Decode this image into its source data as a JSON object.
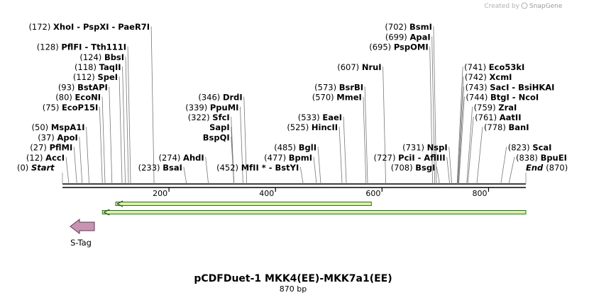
{
  "branding": {
    "created_by": "Created by",
    "app": "SnapGene"
  },
  "map": {
    "title": "pCDFDuet-1 MKK4(EE)-MKK7a1(EE)",
    "length_label": "870 bp",
    "length": 870,
    "start_label": "Start",
    "start_pos": "(0)",
    "end_label": "End",
    "end_pos": "(870)",
    "ticks": [
      200,
      400,
      600,
      800
    ],
    "sites": [
      {
        "pos": "(12)",
        "name": "AccI",
        "bp": 12,
        "side": "L",
        "row": 1
      },
      {
        "pos": "(27)",
        "name": "PflMI",
        "bp": 27,
        "side": "L",
        "row": 2
      },
      {
        "pos": "(37)",
        "name": "ApoI",
        "bp": 37,
        "side": "L",
        "row": 3
      },
      {
        "pos": "(50)",
        "name": "MspA1I",
        "bp": 50,
        "side": "L",
        "row": 4
      },
      {
        "pos": "(75)",
        "name": "EcoP15I",
        "bp": 75,
        "side": "L",
        "row": 6
      },
      {
        "pos": "(80)",
        "name": "EcoNI",
        "bp": 80,
        "side": "L",
        "row": 7
      },
      {
        "pos": "(93)",
        "name": "BstAPI",
        "bp": 93,
        "side": "L",
        "row": 8
      },
      {
        "pos": "(112)",
        "name": "SpeI",
        "bp": 112,
        "side": "L",
        "row": 9
      },
      {
        "pos": "(118)",
        "name": "TaqII",
        "bp": 118,
        "side": "L",
        "row": 10
      },
      {
        "pos": "(124)",
        "name": "BbsI",
        "bp": 124,
        "side": "L",
        "row": 11
      },
      {
        "pos": "(128)",
        "name": "PflFI - Tth111I",
        "bp": 128,
        "side": "L",
        "row": 12
      },
      {
        "pos": "(172)",
        "name": "XhoI - PspXI - PaeR7I",
        "bp": 172,
        "side": "L",
        "row": 14
      },
      {
        "pos": "(233)",
        "name": "BsaI",
        "bp": 233,
        "side": "L",
        "row": 0
      },
      {
        "pos": "(274)",
        "name": "AhdI",
        "bp": 274,
        "side": "L",
        "row": 1
      },
      {
        "pos": "(322)",
        "name": "SfcI",
        "bp": 322,
        "side": "L",
        "row": 5
      },
      {
        "pos": "",
        "name": "SapI",
        "bp": 322,
        "side": "L",
        "row": 4
      },
      {
        "pos": "",
        "name": "BspQI",
        "bp": 322,
        "side": "L",
        "row": 3
      },
      {
        "pos": "(339)",
        "name": "PpuMI",
        "bp": 339,
        "side": "L",
        "row": 6
      },
      {
        "pos": "(346)",
        "name": "DrdI",
        "bp": 346,
        "side": "L",
        "row": 7
      },
      {
        "pos": "(452)",
        "name": "MfII * - BstYI",
        "bp": 452,
        "side": "L",
        "row": 0
      },
      {
        "pos": "(477)",
        "name": "BpmI",
        "bp": 477,
        "side": "L",
        "row": 1
      },
      {
        "pos": "(485)",
        "name": "BglI",
        "bp": 485,
        "side": "L",
        "row": 2
      },
      {
        "pos": "(525)",
        "name": "HincII",
        "bp": 525,
        "side": "L",
        "row": 4
      },
      {
        "pos": "(533)",
        "name": "EaeI",
        "bp": 533,
        "side": "L",
        "row": 5
      },
      {
        "pos": "(570)",
        "name": "MmeI",
        "bp": 570,
        "side": "L",
        "row": 7
      },
      {
        "pos": "(573)",
        "name": "BsrBI",
        "bp": 573,
        "side": "L",
        "row": 8
      },
      {
        "pos": "(607)",
        "name": "NruI",
        "bp": 607,
        "side": "L",
        "row": 10
      },
      {
        "pos": "(695)",
        "name": "PspOMI",
        "bp": 695,
        "side": "L",
        "row": 12
      },
      {
        "pos": "(699)",
        "name": "ApaI",
        "bp": 699,
        "side": "L",
        "row": 13
      },
      {
        "pos": "(702)",
        "name": "BsmI",
        "bp": 702,
        "side": "L",
        "row": 14
      },
      {
        "pos": "(727)",
        "name": "PciI - AflIII",
        "bp": 727,
        "side": "L",
        "row": 1
      },
      {
        "pos": "(708)",
        "name": "BsgI",
        "bp": 708,
        "side": "L",
        "row": 0
      },
      {
        "pos": "(731)",
        "name": "NspI",
        "bp": 731,
        "side": "L",
        "row": 2
      },
      {
        "pos": "(741)",
        "name": "Eco53kI",
        "bp": 741,
        "side": "R",
        "row": 10
      },
      {
        "pos": "(742)",
        "name": "XcmI",
        "bp": 742,
        "side": "R",
        "row": 9
      },
      {
        "pos": "(743)",
        "name": "SacI - BsiHKAI",
        "bp": 743,
        "side": "R",
        "row": 8
      },
      {
        "pos": "(744)",
        "name": "BtgI - NcoI",
        "bp": 744,
        "side": "R",
        "row": 7
      },
      {
        "pos": "(759)",
        "name": "ZraI",
        "bp": 759,
        "side": "R",
        "row": 6
      },
      {
        "pos": "(761)",
        "name": "AatII",
        "bp": 761,
        "side": "R",
        "row": 5
      },
      {
        "pos": "(778)",
        "name": "BanI",
        "bp": 778,
        "side": "R",
        "row": 4
      },
      {
        "pos": "(823)",
        "name": "ScaI",
        "bp": 823,
        "side": "R",
        "row": 2
      },
      {
        "pos": "(838)",
        "name": "BpuEI",
        "bp": 838,
        "side": "R",
        "row": 1
      }
    ],
    "features": [
      {
        "name": "",
        "start": 100,
        "end": 580,
        "direction": "reverse"
      },
      {
        "name": "",
        "start": 75,
        "end": 870,
        "direction": "reverse"
      }
    ],
    "stag": {
      "label": "S-Tag"
    }
  }
}
